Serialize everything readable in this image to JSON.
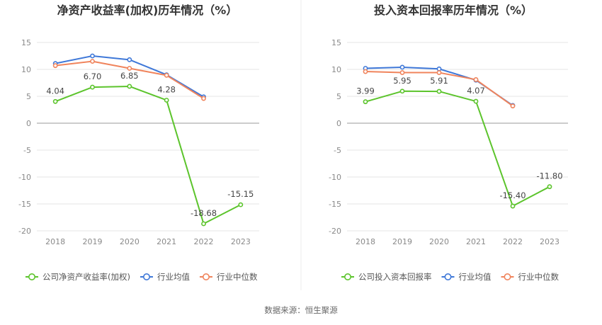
{
  "source": "数据来源：恒生聚源",
  "colors": {
    "company": "#5cc42c",
    "industry_avg": "#3f78d8",
    "industry_median": "#f0845c",
    "axis": "#8a8a8a",
    "grid": "#e6e6e6"
  },
  "chart_data": [
    {
      "type": "line",
      "title": "净资产收益率(加权)历年情况（%）",
      "categories": [
        "2018",
        "2019",
        "2020",
        "2021",
        "2022",
        "2023"
      ],
      "ylim": [
        -20,
        15
      ],
      "yticks": [
        15,
        10,
        5,
        0,
        -5,
        -10,
        -15,
        -20
      ],
      "grid": true,
      "legend_placement": "bottom",
      "series": [
        {
          "name": "公司净资产收益率(加权)",
          "key": "company",
          "values": [
            4.04,
            6.7,
            6.85,
            4.28,
            -18.68,
            -15.15
          ],
          "labels": [
            "4.04",
            "6.70",
            "6.85",
            "4.28",
            "-18.68",
            "-15.15"
          ]
        },
        {
          "name": "行业均值",
          "key": "industry_avg",
          "values": [
            11.1,
            12.5,
            11.8,
            9.0,
            4.9,
            null
          ]
        },
        {
          "name": "行业中位数",
          "key": "industry_median",
          "values": [
            10.7,
            11.5,
            10.2,
            8.9,
            4.6,
            null
          ]
        }
      ]
    },
    {
      "type": "line",
      "title": "投入资本回报率历年情况（%）",
      "categories": [
        "2018",
        "2019",
        "2020",
        "2021",
        "2022",
        "2023"
      ],
      "ylim": [
        -20,
        15
      ],
      "yticks": [
        15,
        10,
        5,
        0,
        -5,
        -10,
        -15,
        -20
      ],
      "grid": true,
      "legend_placement": "bottom",
      "series": [
        {
          "name": "公司投入资本回报率",
          "key": "company",
          "values": [
            3.99,
            5.95,
            5.91,
            4.07,
            -15.4,
            -11.8
          ],
          "labels": [
            "3.99",
            "5.95",
            "5.91",
            "4.07",
            "-15.40",
            "-11.80"
          ]
        },
        {
          "name": "行业均值",
          "key": "industry_avg",
          "values": [
            10.2,
            10.4,
            10.1,
            8.0,
            3.3,
            null
          ]
        },
        {
          "name": "行业中位数",
          "key": "industry_median",
          "values": [
            9.6,
            9.4,
            9.4,
            8.1,
            3.2,
            null
          ]
        }
      ]
    }
  ]
}
